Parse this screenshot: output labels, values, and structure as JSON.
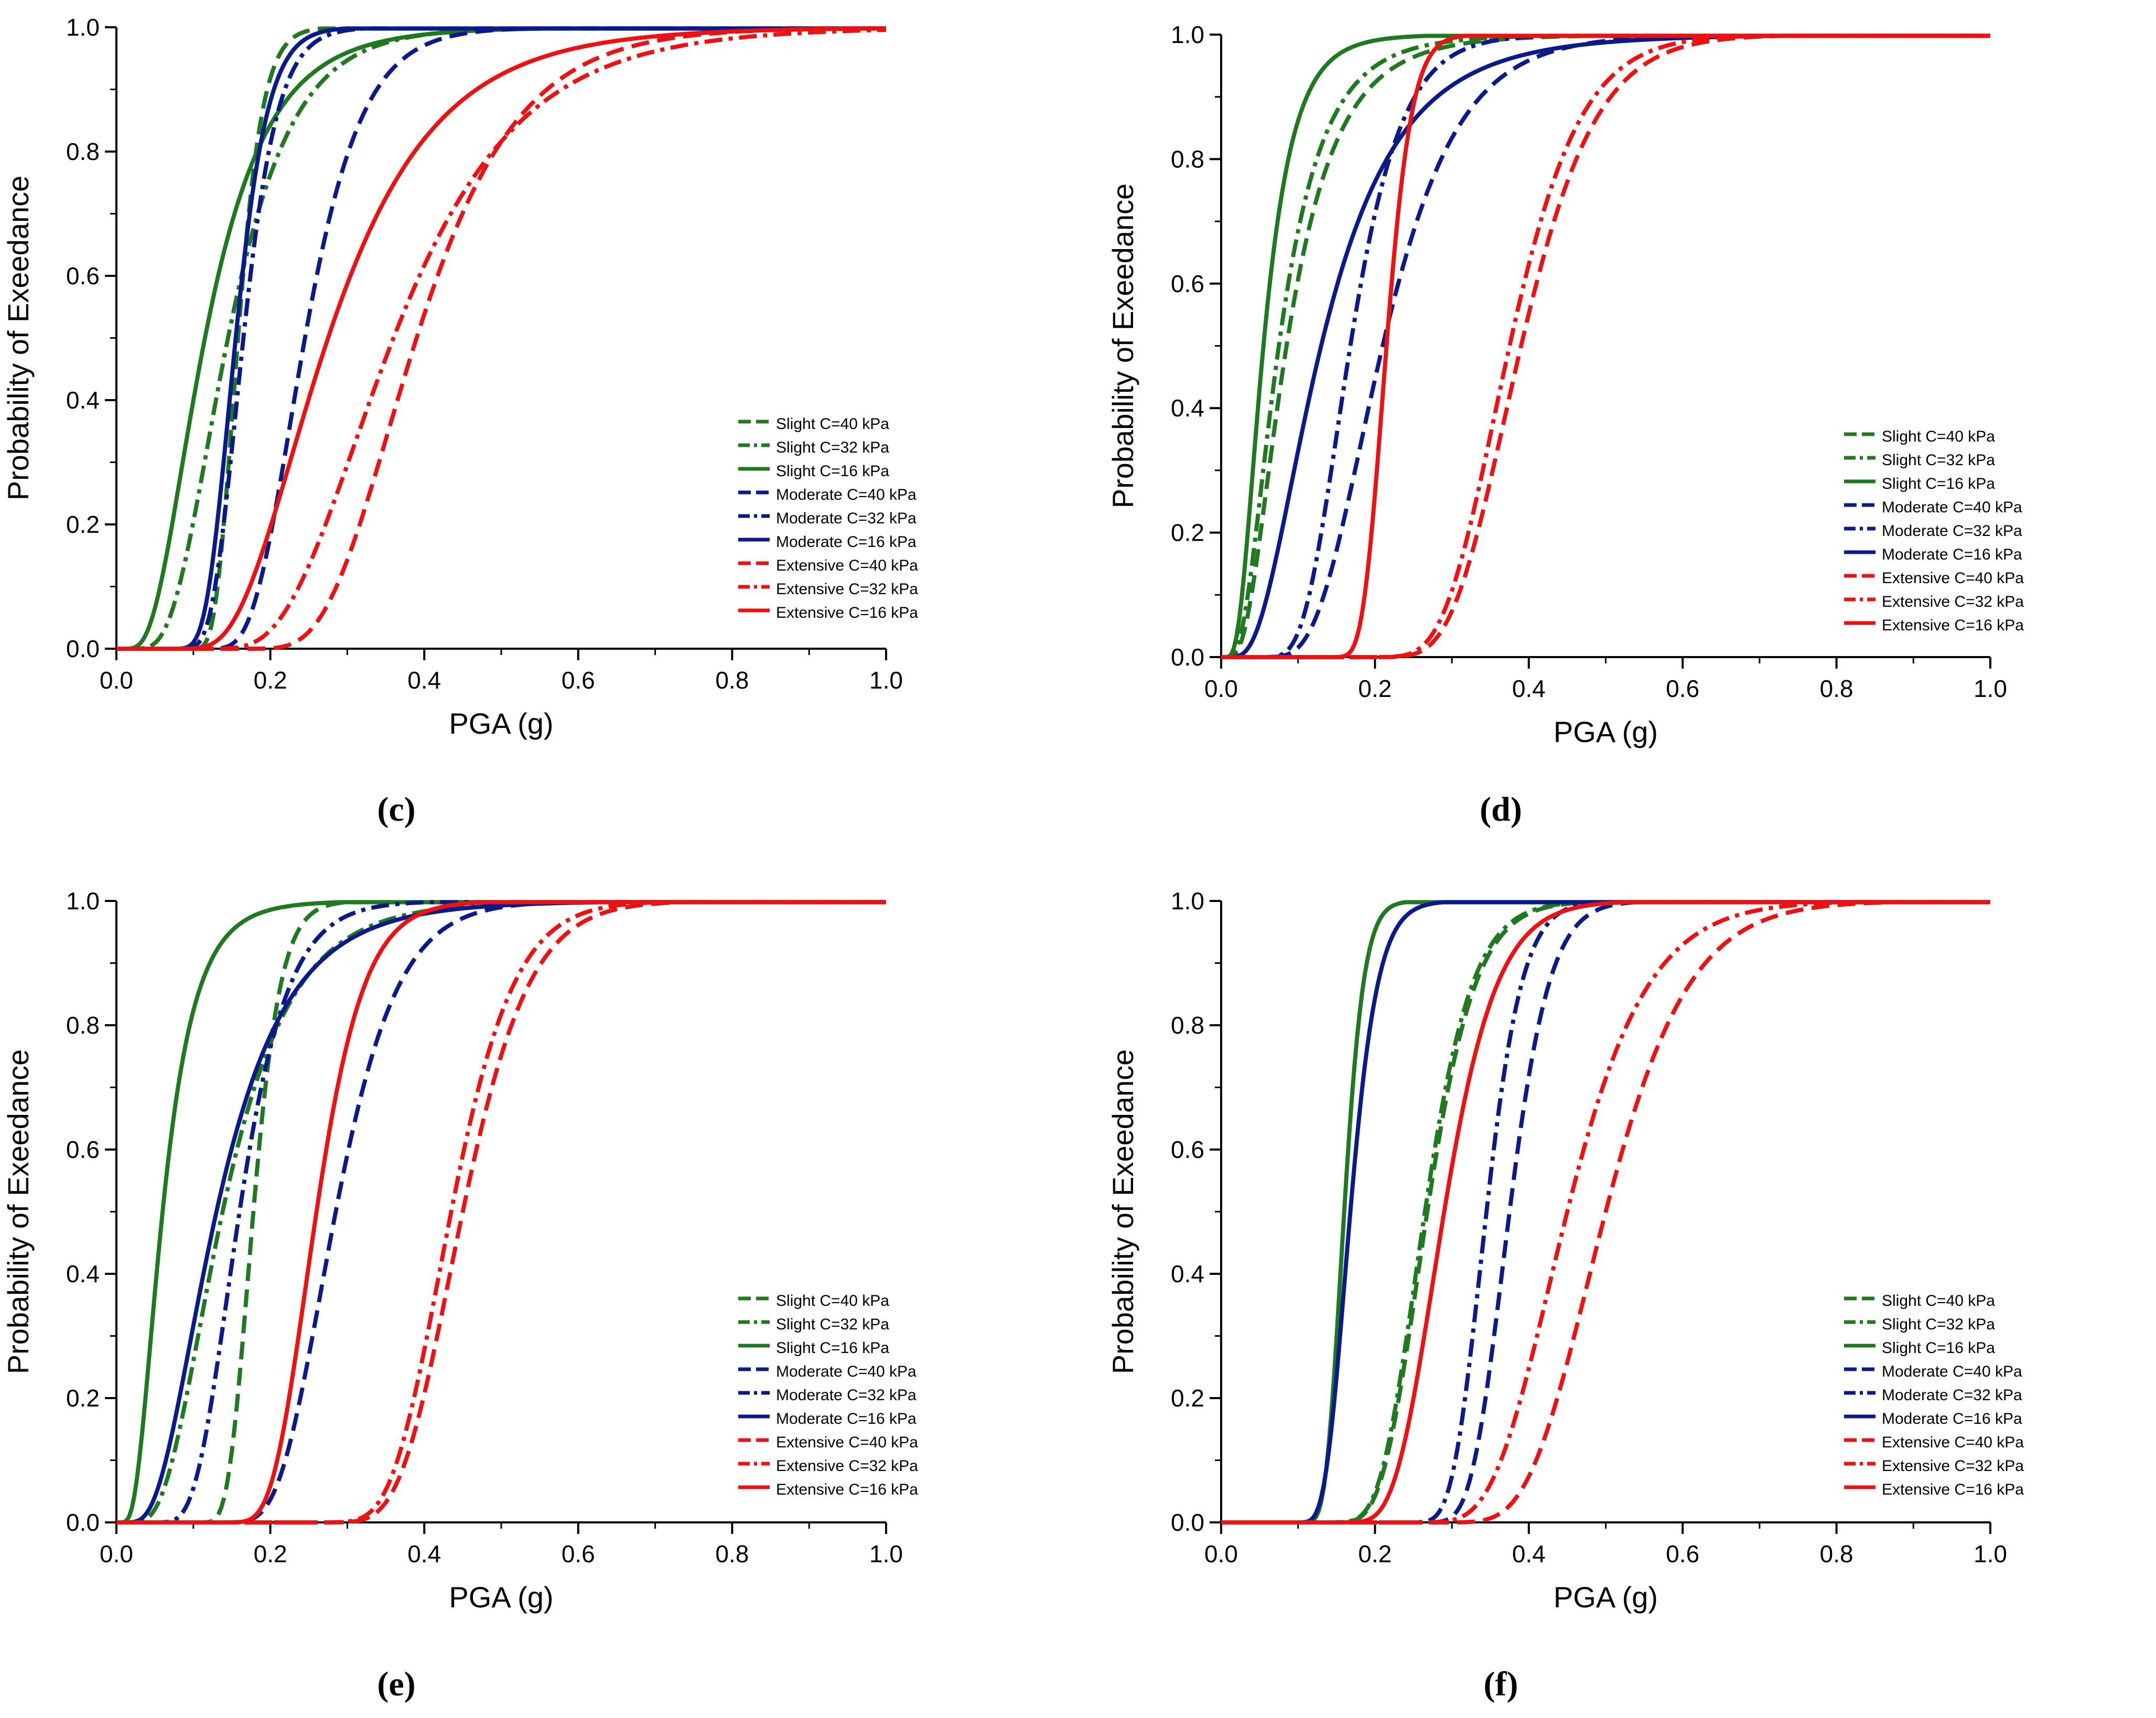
{
  "chart_data": [
    {
      "id": "c",
      "type": "line",
      "panel_label": "(c)",
      "xlabel": "PGA (g)",
      "ylabel": "Probability of Exeedance",
      "xlim": [
        0,
        1
      ],
      "ylim": [
        0,
        1
      ],
      "xticks": [
        0.0,
        0.2,
        0.4,
        0.6,
        0.8,
        1.0
      ],
      "yticks": [
        0.0,
        0.2,
        0.4,
        0.6,
        0.8,
        1.0
      ],
      "xtick_labels": [
        "0.0",
        "0.2",
        "0.4",
        "0.6",
        "0.8",
        "1.0"
      ],
      "ytick_labels": [
        "0.0",
        "0.2",
        "0.4",
        "0.6",
        "0.8",
        "1.0"
      ],
      "legend_position": "lower-right",
      "series": [
        {
          "name": "Slight C=40 kPa",
          "color": "#1f7a1f",
          "dash": "dash",
          "median": 0.158,
          "beta": 0.28,
          "onset": 0.07
        },
        {
          "name": "Slight C=32 kPa",
          "color": "#1f7a1f",
          "dash": "dashdot",
          "median": 0.145,
          "beta": 0.45,
          "onset": 0.0
        },
        {
          "name": "Slight C=16 kPa",
          "color": "#1f7a1f",
          "dash": "solid",
          "median": 0.115,
          "beta": 0.55,
          "onset": 0.0
        },
        {
          "name": "Moderate C=40 kPa",
          "color": "#0b1a8a",
          "dash": "dash",
          "median": 0.245,
          "beta": 0.35,
          "onset": 0.08
        },
        {
          "name": "Moderate C=32 kPa",
          "color": "#0b1a8a",
          "dash": "dashdot",
          "median": 0.165,
          "beta": 0.3,
          "onset": 0.05
        },
        {
          "name": "Moderate C=16 kPa",
          "color": "#0b1a8a",
          "dash": "solid",
          "median": 0.155,
          "beta": 0.28,
          "onset": 0.04
        },
        {
          "name": "Extensive C=40 kPa",
          "color": "#ee1111",
          "dash": "dash",
          "median": 0.39,
          "beta": 0.38,
          "onset": 0.12
        },
        {
          "name": "Extensive C=32 kPa",
          "color": "#ee1111",
          "dash": "dashdot",
          "median": 0.36,
          "beta": 0.45,
          "onset": 0.08
        },
        {
          "name": "Extensive C=16 kPa",
          "color": "#ee1111",
          "dash": "solid",
          "median": 0.275,
          "beta": 0.5,
          "onset": 0.06
        }
      ]
    },
    {
      "id": "d",
      "type": "line",
      "panel_label": "(d)",
      "xlabel": "PGA (g)",
      "ylabel": "Probability of Exeedance",
      "xlim": [
        0,
        1
      ],
      "ylim": [
        0,
        1
      ],
      "xticks": [
        0.0,
        0.2,
        0.4,
        0.6,
        0.8,
        1.0
      ],
      "yticks": [
        0.0,
        0.2,
        0.4,
        0.6,
        0.8,
        1.0
      ],
      "xtick_labels": [
        "0.0",
        "0.2",
        "0.4",
        "0.6",
        "0.8",
        "1.0"
      ],
      "ytick_labels": [
        "0.0",
        "0.2",
        "0.4",
        "0.6",
        "0.8",
        "1.0"
      ],
      "legend_position": "lower-right",
      "series": [
        {
          "name": "Slight C=40 kPa",
          "color": "#1f7a1f",
          "dash": "dash",
          "median": 0.085,
          "beta": 0.6,
          "onset": 0.0
        },
        {
          "name": "Slight C=32 kPa",
          "color": "#1f7a1f",
          "dash": "dashdot",
          "median": 0.075,
          "beta": 0.6,
          "onset": 0.0
        },
        {
          "name": "Slight C=16 kPa",
          "color": "#1f7a1f",
          "dash": "solid",
          "median": 0.055,
          "beta": 0.55,
          "onset": 0.0
        },
        {
          "name": "Moderate C=40 kPa",
          "color": "#0b1a8a",
          "dash": "dash",
          "median": 0.21,
          "beta": 0.4,
          "onset": 0.02
        },
        {
          "name": "Moderate C=32 kPa",
          "color": "#0b1a8a",
          "dash": "dashdot",
          "median": 0.168,
          "beta": 0.35,
          "onset": 0.02
        },
        {
          "name": "Moderate C=16 kPa",
          "color": "#0b1a8a",
          "dash": "solid",
          "median": 0.13,
          "beta": 0.6,
          "onset": 0.0
        },
        {
          "name": "Extensive C=40 kPa",
          "color": "#ee1111",
          "dash": "dash",
          "median": 0.39,
          "beta": 0.28,
          "onset": 0.12
        },
        {
          "name": "Extensive C=32 kPa",
          "color": "#ee1111",
          "dash": "dashdot",
          "median": 0.375,
          "beta": 0.28,
          "onset": 0.12
        },
        {
          "name": "Extensive C=16 kPa",
          "color": "#ee1111",
          "dash": "solid",
          "median": 0.215,
          "beta": 0.22,
          "onset": 0.1
        }
      ]
    },
    {
      "id": "e",
      "type": "line",
      "panel_label": "(e)",
      "xlabel": "PGA (g)",
      "ylabel": "Probability of Exeedance",
      "xlim": [
        0,
        1
      ],
      "ylim": [
        0,
        1
      ],
      "xticks": [
        0.0,
        0.2,
        0.4,
        0.6,
        0.8,
        1.0
      ],
      "yticks": [
        0.0,
        0.2,
        0.4,
        0.6,
        0.8,
        1.0
      ],
      "xtick_labels": [
        "0.0",
        "0.2",
        "0.4",
        "0.6",
        "0.8",
        "1.0"
      ],
      "ytick_labels": [
        "0.0",
        "0.2",
        "0.4",
        "0.6",
        "0.8",
        "1.0"
      ],
      "legend_position": "lower-right",
      "series": [
        {
          "name": "Slight C=40 kPa",
          "color": "#1f7a1f",
          "dash": "dash",
          "median": 0.178,
          "beta": 0.28,
          "onset": 0.08
        },
        {
          "name": "Slight C=32 kPa",
          "color": "#1f7a1f",
          "dash": "dashdot",
          "median": 0.138,
          "beta": 0.5,
          "onset": 0.0
        },
        {
          "name": "Slight C=16 kPa",
          "color": "#1f7a1f",
          "dash": "solid",
          "median": 0.06,
          "beta": 0.55,
          "onset": 0.0
        },
        {
          "name": "Moderate C=40 kPa",
          "color": "#0b1a8a",
          "dash": "dash",
          "median": 0.285,
          "beta": 0.32,
          "onset": 0.09
        },
        {
          "name": "Moderate C=32 kPa",
          "color": "#0b1a8a",
          "dash": "dashdot",
          "median": 0.16,
          "beta": 0.35,
          "onset": 0.02
        },
        {
          "name": "Moderate C=16 kPa",
          "color": "#0b1a8a",
          "dash": "solid",
          "median": 0.13,
          "beta": 0.55,
          "onset": 0.0
        },
        {
          "name": "Extensive C=40 kPa",
          "color": "#ee1111",
          "dash": "dash",
          "median": 0.45,
          "beta": 0.25,
          "onset": 0.18
        },
        {
          "name": "Extensive C=32 kPa",
          "color": "#ee1111",
          "dash": "dashdot",
          "median": 0.435,
          "beta": 0.25,
          "onset": 0.18
        },
        {
          "name": "Extensive C=16 kPa",
          "color": "#ee1111",
          "dash": "solid",
          "median": 0.26,
          "beta": 0.3,
          "onset": 0.1
        }
      ]
    },
    {
      "id": "f",
      "type": "line",
      "panel_label": "(f)",
      "xlabel": "PGA (g)",
      "ylabel": "Probability of Exeedance",
      "xlim": [
        0,
        1
      ],
      "ylim": [
        0,
        1
      ],
      "xticks": [
        0.0,
        0.2,
        0.4,
        0.6,
        0.8,
        1.0
      ],
      "yticks": [
        0.0,
        0.2,
        0.4,
        0.6,
        0.8,
        1.0
      ],
      "xtick_labels": [
        "0.0",
        "0.2",
        "0.4",
        "0.6",
        "0.8",
        "1.0"
      ],
      "ytick_labels": [
        "0.0",
        "0.2",
        "0.4",
        "0.6",
        "0.8",
        "1.0"
      ],
      "legend_position": "lower-right",
      "series": [
        {
          "name": "Slight C=40 kPa",
          "color": "#1f7a1f",
          "dash": "dash",
          "median": 0.268,
          "beta": 0.26,
          "onset": 0.08
        },
        {
          "name": "Slight C=32 kPa",
          "color": "#1f7a1f",
          "dash": "dashdot",
          "median": 0.265,
          "beta": 0.26,
          "onset": 0.08
        },
        {
          "name": "Slight C=16 kPa",
          "color": "#1f7a1f",
          "dash": "solid",
          "median": 0.16,
          "beta": 0.22,
          "onset": 0.07
        },
        {
          "name": "Moderate C=40 kPa",
          "color": "#0b1a8a",
          "dash": "dash",
          "median": 0.375,
          "beta": 0.22,
          "onset": 0.19
        },
        {
          "name": "Moderate C=32 kPa",
          "color": "#0b1a8a",
          "dash": "dashdot",
          "median": 0.345,
          "beta": 0.22,
          "onset": 0.18
        },
        {
          "name": "Moderate C=16 kPa",
          "color": "#0b1a8a",
          "dash": "solid",
          "median": 0.168,
          "beta": 0.28,
          "onset": 0.07
        },
        {
          "name": "Extensive C=40 kPa",
          "color": "#ee1111",
          "dash": "dash",
          "median": 0.5,
          "beta": 0.28,
          "onset": 0.2
        },
        {
          "name": "Extensive C=32 kPa",
          "color": "#ee1111",
          "dash": "dashdot",
          "median": 0.45,
          "beta": 0.3,
          "onset": 0.18
        },
        {
          "name": "Extensive C=16 kPa",
          "color": "#ee1111",
          "dash": "solid",
          "median": 0.29,
          "beta": 0.28,
          "onset": 0.1
        }
      ]
    }
  ]
}
